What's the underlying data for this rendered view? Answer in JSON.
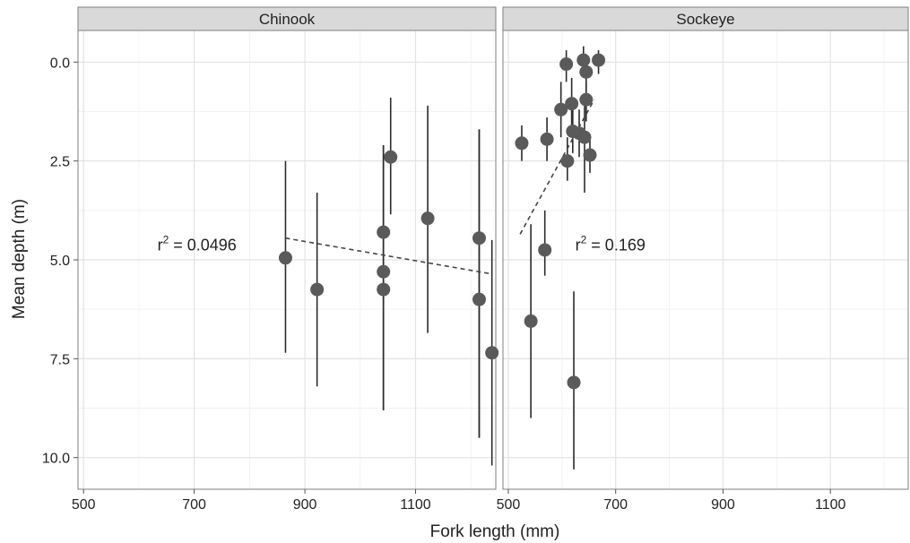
{
  "chart_data": {
    "type": "scatter",
    "xlabel": "Fork length (mm)",
    "ylabel": "Mean depth (m)",
    "x_ticks": [
      500,
      700,
      900,
      1100
    ],
    "y_ticks": [
      "0.0",
      "2.5",
      "5.0",
      "7.5",
      "10.0"
    ],
    "y_reversed": true,
    "grid": true,
    "panels": [
      {
        "name": "Chinook",
        "xlim": [
          490,
          1245
        ],
        "ylim": [
          -0.8,
          10.8
        ],
        "annotation": {
          "prefix": "r",
          "exponent": "2",
          "value": " = 0.0496",
          "x": 705,
          "y": 4.6
        },
        "trend": {
          "x": [
            865,
            1235
          ],
          "y": [
            4.45,
            5.35
          ]
        },
        "points": [
          {
            "x": 865,
            "y": 4.95,
            "lo": 2.5,
            "hi": 7.35
          },
          {
            "x": 922,
            "y": 5.75,
            "lo": 3.3,
            "hi": 8.2
          },
          {
            "x": 1042,
            "y": 4.3,
            "lo": 2.1,
            "hi": 8.8
          },
          {
            "x": 1042,
            "y": 5.3,
            "lo": 2.1,
            "hi": 8.8
          },
          {
            "x": 1042,
            "y": 5.75,
            "lo": 2.1,
            "hi": 8.8
          },
          {
            "x": 1055,
            "y": 2.4,
            "lo": 0.9,
            "hi": 3.85
          },
          {
            "x": 1122,
            "y": 3.95,
            "lo": 1.1,
            "hi": 6.85
          },
          {
            "x": 1215,
            "y": 4.45,
            "lo": 1.7,
            "hi": 9.5
          },
          {
            "x": 1215,
            "y": 6.0,
            "lo": 1.7,
            "hi": 9.5
          },
          {
            "x": 1238,
            "y": 7.35,
            "lo": 4.5,
            "hi": 10.2
          }
        ]
      },
      {
        "name": "Sockeye",
        "xlim": [
          490,
          1245
        ],
        "ylim": [
          -0.8,
          10.8
        ],
        "annotation": {
          "prefix": "r",
          "exponent": "2",
          "value": " = 0.169",
          "x": 690,
          "y": 4.6
        },
        "trend": {
          "x": [
            522,
            660
          ],
          "y": [
            4.35,
            0.95
          ]
        },
        "points": [
          {
            "x": 525,
            "y": 2.05,
            "lo": 1.6,
            "hi": 2.5
          },
          {
            "x": 542,
            "y": 6.55,
            "lo": 4.1,
            "hi": 9.0
          },
          {
            "x": 568,
            "y": 4.75,
            "lo": 3.75,
            "hi": 5.4
          },
          {
            "x": 572,
            "y": 1.95,
            "lo": 1.4,
            "hi": 2.5
          },
          {
            "x": 598,
            "y": 1.2,
            "lo": 0.5,
            "hi": 1.9
          },
          {
            "x": 608,
            "y": 0.05,
            "lo": -0.3,
            "hi": 0.5
          },
          {
            "x": 610,
            "y": 2.5,
            "lo": 1.9,
            "hi": 3.0
          },
          {
            "x": 618,
            "y": 1.05,
            "lo": 0.4,
            "hi": 1.7
          },
          {
            "x": 620,
            "y": 1.75,
            "lo": 1.2,
            "hi": 2.3
          },
          {
            "x": 622,
            "y": 8.1,
            "lo": 5.8,
            "hi": 10.3
          },
          {
            "x": 632,
            "y": 1.8,
            "lo": 1.2,
            "hi": 2.4
          },
          {
            "x": 640,
            "y": -0.05,
            "lo": -0.4,
            "hi": 0.35
          },
          {
            "x": 642,
            "y": 1.9,
            "lo": 1.0,
            "hi": 3.3
          },
          {
            "x": 645,
            "y": 0.25,
            "lo": -0.1,
            "hi": 0.7
          },
          {
            "x": 645,
            "y": 0.95,
            "lo": 0.5,
            "hi": 1.5
          },
          {
            "x": 652,
            "y": 2.35,
            "lo": 1.9,
            "hi": 2.8
          },
          {
            "x": 668,
            "y": -0.05,
            "lo": -0.3,
            "hi": 0.3
          }
        ]
      }
    ]
  }
}
